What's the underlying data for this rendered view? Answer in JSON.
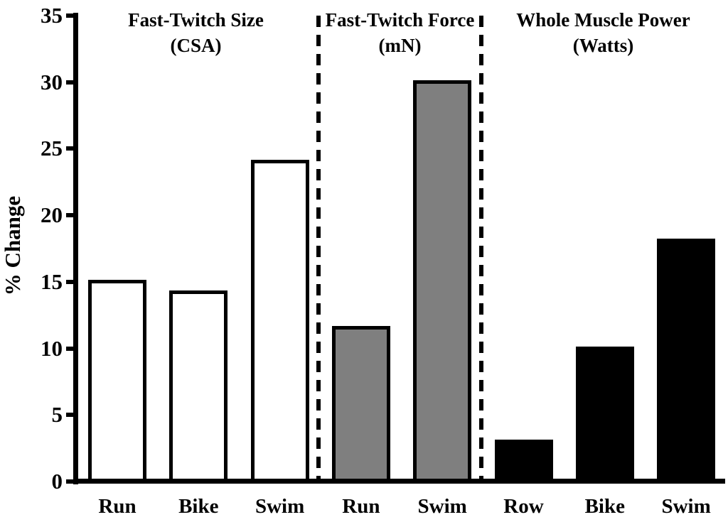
{
  "chart_data": {
    "type": "bar",
    "title": "",
    "xlabel": "",
    "ylabel": "% Change",
    "ylim": [
      0,
      35
    ],
    "yticks": [
      0,
      5,
      10,
      15,
      20,
      25,
      30,
      35
    ],
    "grid": false,
    "legend": "none",
    "colors": {
      "axis": "#000000",
      "white_bar_fill": "#ffffff",
      "gray_bar_fill": "#7f7f7f",
      "black_bar_fill": "#000000",
      "bar_border": "#000000"
    },
    "sections": [
      {
        "title": "Fast-Twitch Size",
        "subtitle": "(CSA)",
        "fill": "#ffffff",
        "bars": [
          {
            "label": "Run",
            "value": 15
          },
          {
            "label": "Bike",
            "value": 14.2
          },
          {
            "label": "Swim",
            "value": 24
          }
        ]
      },
      {
        "title": "Fast-Twitch Force",
        "subtitle": "(mN)",
        "fill": "#7f7f7f",
        "bars": [
          {
            "label": "Run",
            "value": 11.5
          },
          {
            "label": "Swim",
            "value": 30
          }
        ]
      },
      {
        "title": "Whole Muscle Power",
        "subtitle": "(Watts)",
        "fill": "#000000",
        "bars": [
          {
            "label": "Row",
            "value": 3
          },
          {
            "label": "Bike",
            "value": 10
          },
          {
            "label": "Swim",
            "value": 18.1
          }
        ]
      }
    ]
  }
}
